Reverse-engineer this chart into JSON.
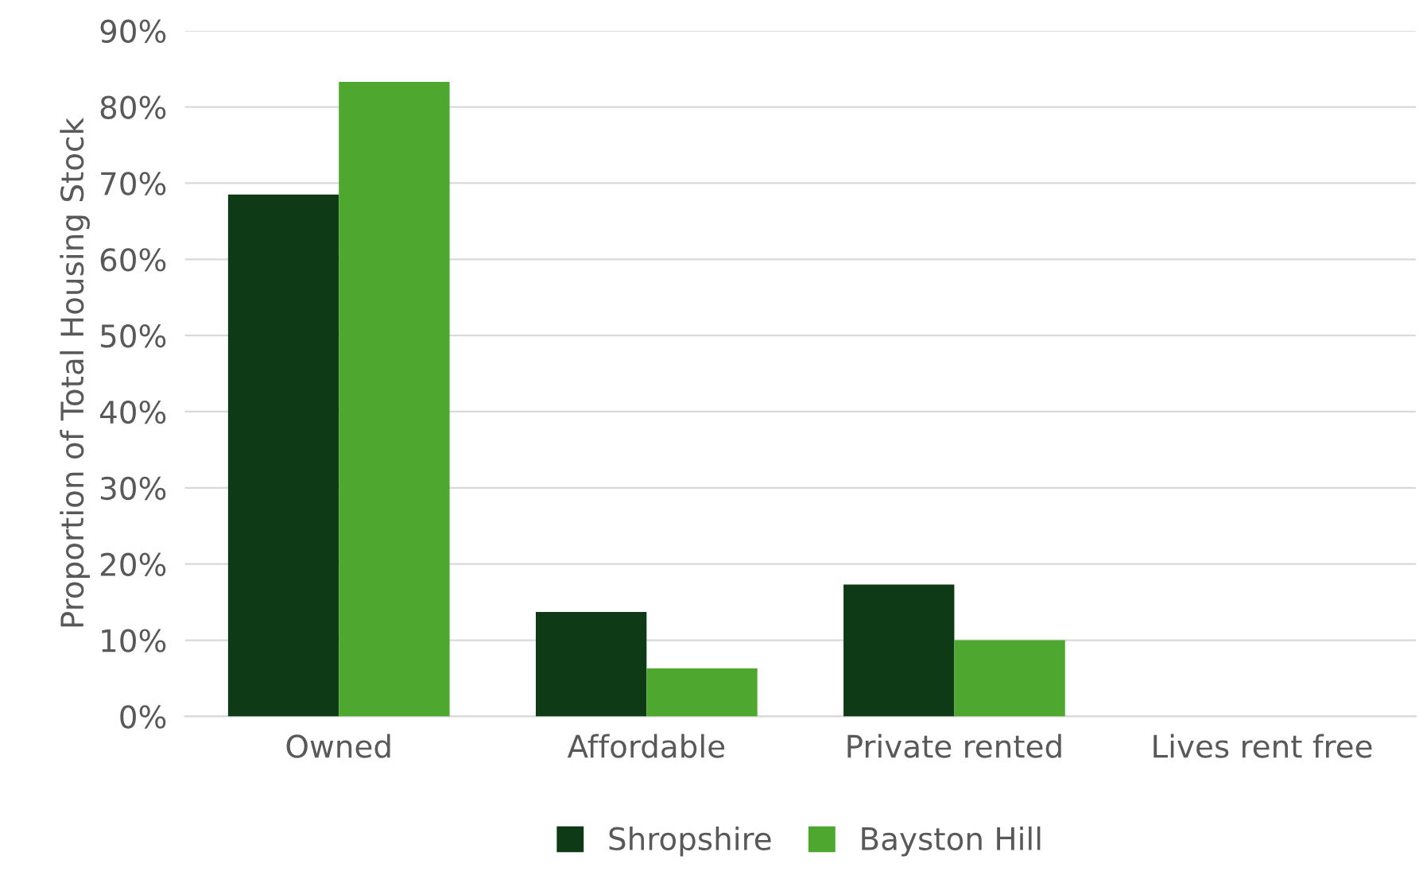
{
  "chart_data": {
    "type": "bar",
    "ylabel": "Proportion of Total Housing Stock",
    "categories": [
      "Owned",
      "Affordable",
      "Private rented",
      "Lives rent free"
    ],
    "series": [
      {
        "name": "Shropshire",
        "color": "#0e3a16",
        "values": [
          68.5,
          13.7,
          17.3,
          0
        ]
      },
      {
        "name": "Bayston Hill",
        "color": "#4ea72e",
        "values": [
          83.3,
          6.3,
          10.0,
          0
        ]
      }
    ],
    "ylim": [
      0,
      90
    ],
    "yticks": [
      {
        "value": 0,
        "label": "0%"
      },
      {
        "value": 10,
        "label": "10%"
      },
      {
        "value": 20,
        "label": "20%"
      },
      {
        "value": 30,
        "label": "30%"
      },
      {
        "value": 40,
        "label": "40%"
      },
      {
        "value": 50,
        "label": "50%"
      },
      {
        "value": 60,
        "label": "60%"
      },
      {
        "value": 70,
        "label": "70%"
      },
      {
        "value": 80,
        "label": "80%"
      },
      {
        "value": 90,
        "label": "90%"
      }
    ],
    "grid": "y",
    "legend": "bottom"
  }
}
